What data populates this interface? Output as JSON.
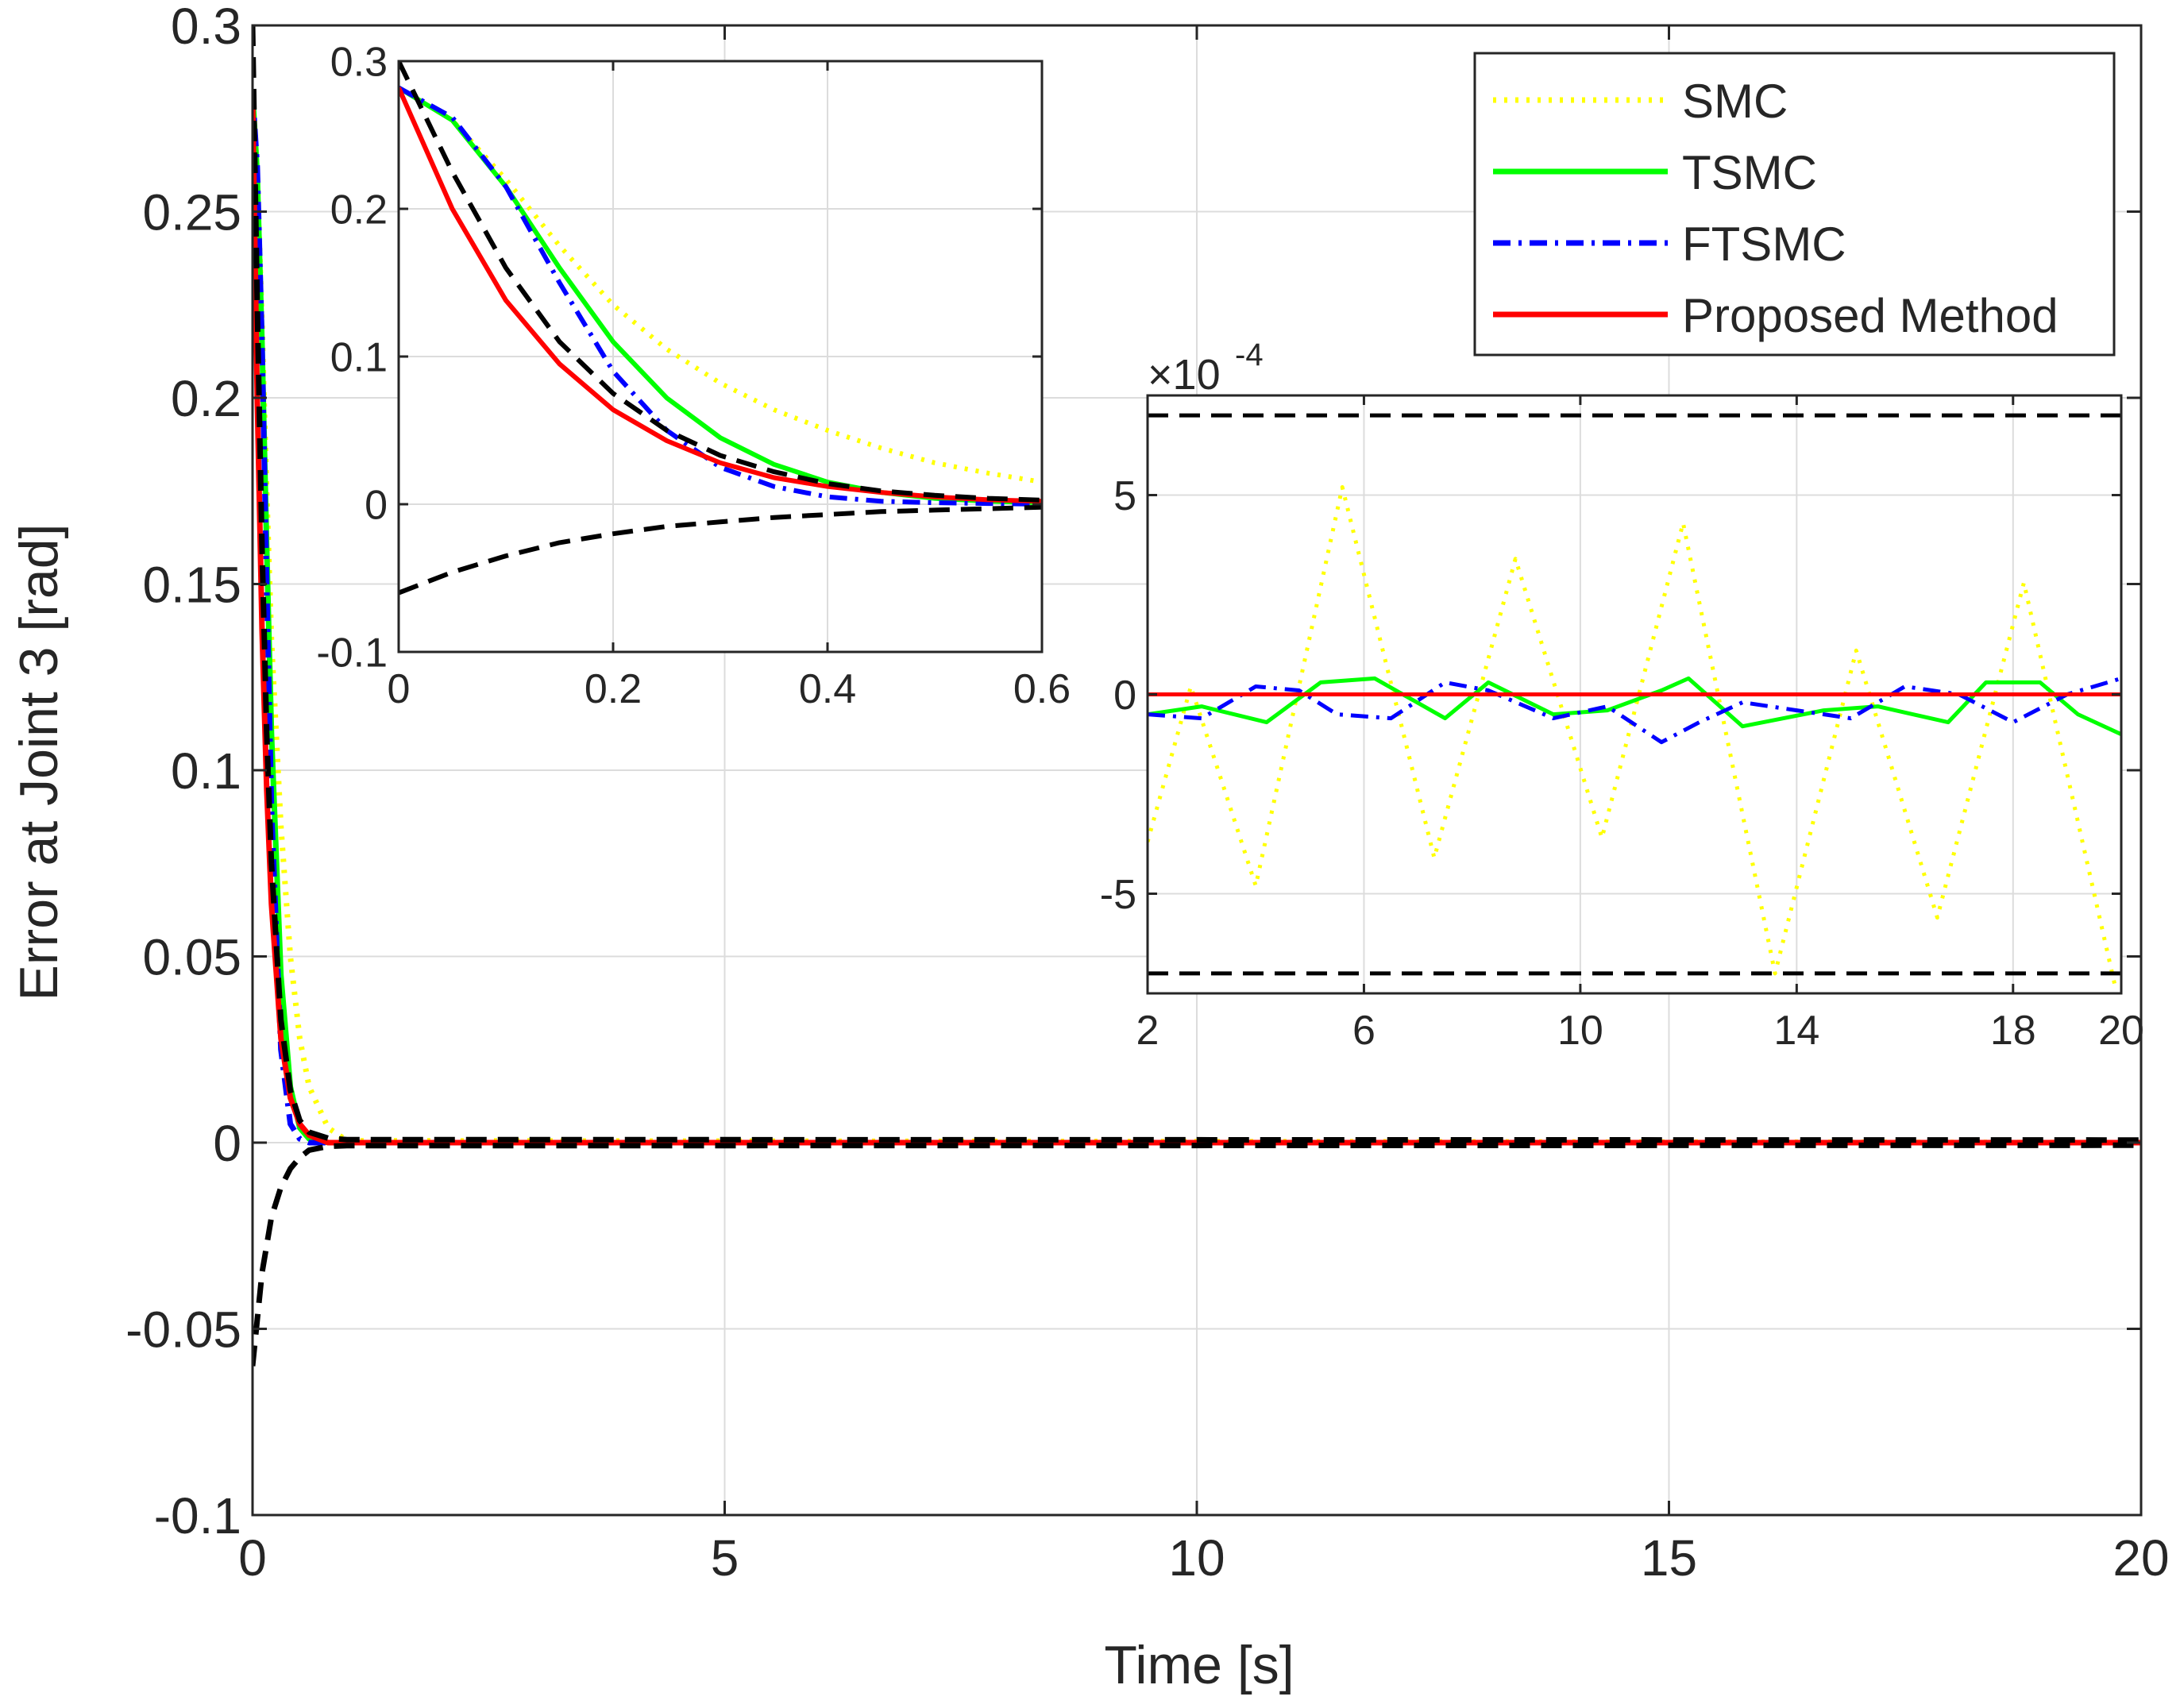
{
  "chart_data": [
    {
      "id": "main",
      "type": "line",
      "xlabel": "Time [s]",
      "ylabel": "Error at Joint 3 [rad]",
      "xlim": [
        0,
        20
      ],
      "ylim": [
        -0.1,
        0.3
      ],
      "xticks": [
        0,
        5,
        10,
        15,
        20
      ],
      "xtick_labels": [
        "0",
        "5",
        "10",
        "15",
        "20"
      ],
      "yticks": [
        -0.1,
        -0.05,
        0,
        0.05,
        0.1,
        0.15,
        0.2,
        0.25,
        0.3
      ],
      "ytick_labels": [
        "-0.1",
        "-0.05",
        "0",
        "0.05",
        "0.1",
        "0.15",
        "0.2",
        "0.25",
        "0.3"
      ],
      "grid": true,
      "legend": {
        "position": "top-right",
        "entries": [
          "SMC",
          "TSMC",
          "FTSMC",
          "Proposed Method"
        ]
      },
      "series": [
        {
          "name": "SMC",
          "color": "#ffff00",
          "style": "dotted",
          "x": [
            0,
            0.05,
            0.1,
            0.15,
            0.2,
            0.3,
            0.4,
            0.5,
            0.6,
            0.8,
            1.0,
            20
          ],
          "y": [
            0.282,
            0.26,
            0.22,
            0.175,
            0.135,
            0.085,
            0.05,
            0.028,
            0.015,
            0.004,
            0.0005,
            0
          ]
        },
        {
          "name": "TSMC",
          "color": "#00ff00",
          "style": "solid",
          "x": [
            0,
            0.05,
            0.1,
            0.15,
            0.2,
            0.3,
            0.4,
            0.5,
            0.6,
            0.8,
            1.0,
            20
          ],
          "y": [
            0.282,
            0.26,
            0.215,
            0.16,
            0.11,
            0.045,
            0.015,
            0.004,
            0.001,
            0,
            0,
            0
          ]
        },
        {
          "name": "FTSMC",
          "color": "#0000ff",
          "style": "dashdot",
          "x": [
            0,
            0.05,
            0.1,
            0.15,
            0.2,
            0.3,
            0.4,
            0.5,
            0.6,
            0.8,
            1.0,
            20
          ],
          "y": [
            0.282,
            0.262,
            0.215,
            0.15,
            0.09,
            0.025,
            0.005,
            0.001,
            0,
            0,
            0,
            0
          ]
        },
        {
          "name": "Proposed Method",
          "color": "#ff0000",
          "style": "solid",
          "x": [
            0,
            0.05,
            0.1,
            0.15,
            0.2,
            0.3,
            0.4,
            0.5,
            0.6,
            0.8,
            1.0,
            20
          ],
          "y": [
            0.282,
            0.2,
            0.138,
            0.095,
            0.064,
            0.028,
            0.012,
            0.005,
            0.002,
            0,
            0,
            0
          ]
        },
        {
          "name": "Upper bound",
          "color": "#000000",
          "style": "dashed",
          "x": [
            0,
            0.05,
            0.1,
            0.15,
            0.2,
            0.3,
            0.4,
            0.5,
            0.6,
            0.8,
            1.0,
            20
          ],
          "y": [
            0.3,
            0.225,
            0.16,
            0.11,
            0.075,
            0.033,
            0.014,
            0.006,
            0.0028,
            0.0012,
            0.0008,
            0.0007
          ]
        },
        {
          "name": "Lower bound",
          "color": "#000000",
          "style": "dashed",
          "x": [
            0,
            0.1,
            0.2,
            0.3,
            0.4,
            0.5,
            0.6,
            0.8,
            1.0,
            20
          ],
          "y": [
            -0.06,
            -0.035,
            -0.02,
            -0.012,
            -0.007,
            -0.004,
            -0.002,
            -0.001,
            -0.0008,
            -0.0007
          ]
        }
      ]
    },
    {
      "id": "inset_transient",
      "type": "line",
      "xlim": [
        0,
        0.6
      ],
      "ylim": [
        -0.1,
        0.3
      ],
      "xticks": [
        0,
        0.2,
        0.4,
        0.6
      ],
      "xtick_labels": [
        "0",
        "0.2",
        "0.4",
        "0.6"
      ],
      "yticks": [
        -0.1,
        0,
        0.1,
        0.2,
        0.3
      ],
      "ytick_labels": [
        "-0.1",
        "0",
        "0.1",
        "0.2",
        "0.3"
      ],
      "grid": true,
      "series": [
        {
          "name": "SMC",
          "color": "#ffff00",
          "style": "dotted",
          "x": [
            0,
            0.05,
            0.1,
            0.15,
            0.2,
            0.25,
            0.3,
            0.35,
            0.4,
            0.45,
            0.5,
            0.55,
            0.6
          ],
          "y": [
            0.282,
            0.26,
            0.22,
            0.175,
            0.135,
            0.105,
            0.082,
            0.064,
            0.05,
            0.038,
            0.028,
            0.021,
            0.015
          ]
        },
        {
          "name": "TSMC",
          "color": "#00ff00",
          "style": "solid",
          "x": [
            0,
            0.05,
            0.1,
            0.15,
            0.2,
            0.25,
            0.3,
            0.35,
            0.4,
            0.45,
            0.5,
            0.55,
            0.6
          ],
          "y": [
            0.282,
            0.26,
            0.215,
            0.16,
            0.11,
            0.072,
            0.045,
            0.027,
            0.015,
            0.008,
            0.004,
            0.002,
            0.001
          ]
        },
        {
          "name": "FTSMC",
          "color": "#0000ff",
          "style": "dashdot",
          "x": [
            0,
            0.05,
            0.1,
            0.15,
            0.2,
            0.25,
            0.3,
            0.35,
            0.4,
            0.45,
            0.5,
            0.55,
            0.6
          ],
          "y": [
            0.282,
            0.262,
            0.215,
            0.15,
            0.09,
            0.05,
            0.025,
            0.012,
            0.005,
            0.002,
            0.001,
            0.0005,
            0
          ]
        },
        {
          "name": "Proposed Method",
          "color": "#ff0000",
          "style": "solid",
          "x": [
            0,
            0.05,
            0.1,
            0.15,
            0.2,
            0.25,
            0.3,
            0.35,
            0.4,
            0.45,
            0.5,
            0.55,
            0.6
          ],
          "y": [
            0.282,
            0.2,
            0.138,
            0.095,
            0.064,
            0.043,
            0.028,
            0.018,
            0.012,
            0.008,
            0.005,
            0.003,
            0.002
          ]
        },
        {
          "name": "Upper bound",
          "color": "#000000",
          "style": "dashed",
          "x": [
            0,
            0.05,
            0.1,
            0.15,
            0.2,
            0.25,
            0.3,
            0.35,
            0.4,
            0.45,
            0.5,
            0.55,
            0.6
          ],
          "y": [
            0.3,
            0.225,
            0.16,
            0.11,
            0.075,
            0.05,
            0.033,
            0.022,
            0.014,
            0.009,
            0.006,
            0.004,
            0.0028
          ]
        },
        {
          "name": "Lower bound",
          "color": "#000000",
          "style": "dashed",
          "x": [
            0,
            0.05,
            0.1,
            0.15,
            0.2,
            0.25,
            0.3,
            0.35,
            0.4,
            0.45,
            0.5,
            0.55,
            0.6
          ],
          "y": [
            -0.06,
            -0.046,
            -0.035,
            -0.026,
            -0.02,
            -0.015,
            -0.012,
            -0.009,
            -0.007,
            -0.005,
            -0.004,
            -0.003,
            -0.002
          ]
        }
      ]
    },
    {
      "id": "inset_steady",
      "type": "line",
      "xlim": [
        2,
        20
      ],
      "ylim": [
        -7.5,
        7.5
      ],
      "exponent_label": "×10",
      "exponent_power": "-4",
      "xticks": [
        2,
        6,
        10,
        14,
        18,
        20
      ],
      "xtick_labels": [
        "2",
        "6",
        "10",
        "14",
        "18",
        "20"
      ],
      "yticks": [
        -5,
        0,
        5
      ],
      "ytick_labels": [
        "-5",
        "0",
        "5"
      ],
      "grid": true,
      "series": [
        {
          "name": "SMC",
          "color": "#ffff00",
          "style": "dotted",
          "x": [
            2,
            2.8,
            4.0,
            5.6,
            7.3,
            8.8,
            10.4,
            11.9,
            13.6,
            15.1,
            16.6,
            18.2,
            19.9
          ],
          "y": [
            -3.7,
            0.2,
            -4.8,
            5.2,
            -4.1,
            3.4,
            -3.6,
            4.3,
            -7.0,
            1.1,
            -5.6,
            2.8,
            -7.4
          ]
        },
        {
          "name": "TSMC",
          "color": "#00ff00",
          "style": "solid",
          "x": [
            2,
            3.0,
            4.2,
            5.2,
            6.2,
            7.5,
            8.3,
            9.5,
            10.5,
            11.5,
            12.0,
            13.0,
            14.5,
            15.5,
            16.8,
            17.5,
            18.5,
            19.2,
            20
          ],
          "y": [
            -0.5,
            -0.3,
            -0.7,
            0.3,
            0.4,
            -0.6,
            0.3,
            -0.5,
            -0.4,
            0.1,
            0.4,
            -0.8,
            -0.4,
            -0.3,
            -0.7,
            0.3,
            0.3,
            -0.5,
            -1.0
          ]
        },
        {
          "name": "FTSMC",
          "color": "#0000ff",
          "style": "dashdot",
          "x": [
            2,
            3.0,
            4.0,
            4.8,
            5.5,
            6.5,
            7.5,
            8.3,
            9.5,
            10.5,
            11.5,
            12.2,
            13.0,
            14.0,
            15.0,
            16.0,
            17.0,
            18.0,
            19.0,
            20
          ],
          "y": [
            -0.5,
            -0.6,
            0.2,
            0.1,
            -0.5,
            -0.6,
            0.3,
            0.1,
            -0.6,
            -0.3,
            -1.2,
            -0.7,
            -0.2,
            -0.4,
            -0.6,
            0.2,
            0.0,
            -0.7,
            0.0,
            0.4
          ]
        },
        {
          "name": "Proposed Method",
          "color": "#ff0000",
          "style": "solid",
          "x": [
            2,
            20
          ],
          "y": [
            0,
            0
          ]
        },
        {
          "name": "Upper bound",
          "color": "#000000",
          "style": "dashed",
          "x": [
            2,
            20
          ],
          "y": [
            7.0,
            7.0
          ]
        },
        {
          "name": "Lower bound",
          "color": "#000000",
          "style": "dashed",
          "x": [
            2,
            20
          ],
          "y": [
            -7.0,
            -7.0
          ]
        }
      ]
    }
  ]
}
